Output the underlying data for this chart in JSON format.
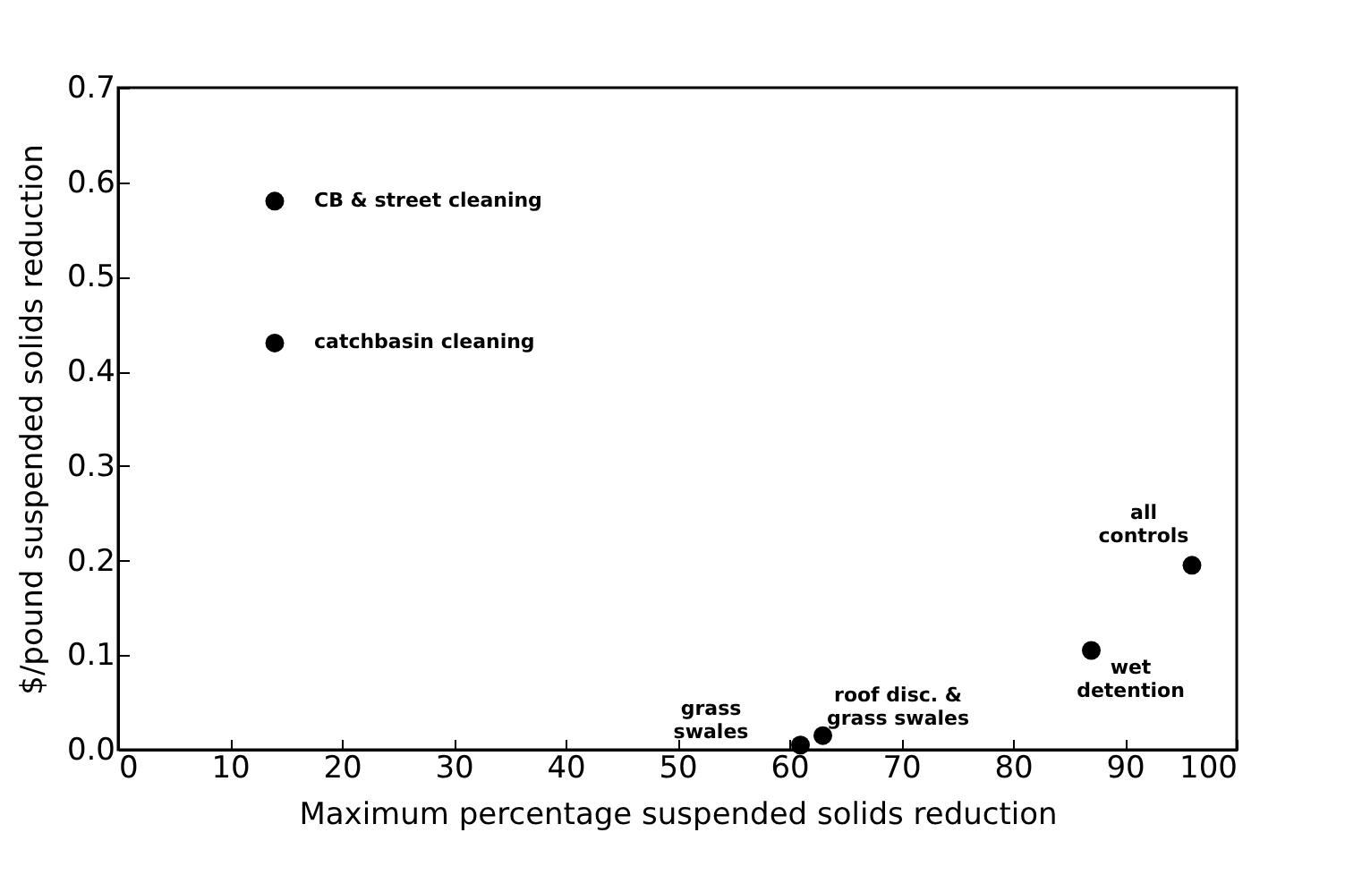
{
  "chart_data": {
    "type": "scatter",
    "xlabel": "Maximum percentage suspended solids reduction",
    "ylabel": "$/pound suspended solids reduction",
    "x": [
      14,
      14,
      61,
      63,
      87,
      96
    ],
    "values": [
      0.58,
      0.43,
      0.005,
      0.015,
      0.105,
      0.195
    ],
    "color": "#000000",
    "marker": "circle",
    "xlim": [
      0,
      100
    ],
    "xticks": [
      0,
      10,
      20,
      30,
      40,
      50,
      60,
      70,
      80,
      90,
      100
    ],
    "ylim": [
      0,
      0.7
    ],
    "yticks": [
      {
        "value": 0,
        "label": "0.0"
      },
      0.1,
      0.2,
      0.3,
      0.4,
      0.5,
      0.6,
      0.7
    ],
    "grid": false,
    "annotations": [
      {
        "text": "CB & street cleaning",
        "x": 14,
        "y": 0.58
      },
      {
        "text": "catchbasin cleaning",
        "x": 14,
        "y": 0.43
      },
      {
        "text": "grass\nswales",
        "x": 61,
        "y": 0.005
      },
      {
        "text": "roof disc. &\ngrass swales",
        "x": 63,
        "y": 0.015
      },
      {
        "text": "wet\ndetention",
        "x": 87,
        "y": 0.105
      },
      {
        "text": "all\ncontrols",
        "x": 96,
        "y": 0.195
      }
    ]
  }
}
